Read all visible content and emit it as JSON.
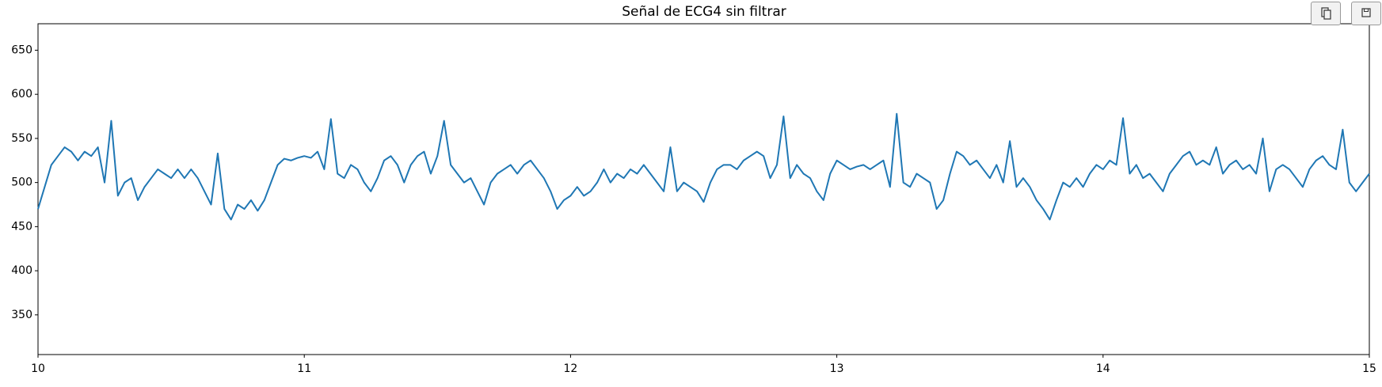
{
  "chart_data": {
    "type": "line",
    "title": "Señal de ECG4 sin filtrar",
    "x": [
      10.0,
      10.025,
      10.05,
      10.075,
      10.1,
      10.125,
      10.15,
      10.175,
      10.2,
      10.225,
      10.25,
      10.275,
      10.3,
      10.325,
      10.35,
      10.375,
      10.4,
      10.425,
      10.45,
      10.475,
      10.5,
      10.525,
      10.55,
      10.575,
      10.6,
      10.625,
      10.65,
      10.675,
      10.7,
      10.725,
      10.75,
      10.775,
      10.8,
      10.825,
      10.85,
      10.875,
      10.9,
      10.925,
      10.95,
      10.975,
      11.0,
      11.025,
      11.05,
      11.075,
      11.1,
      11.125,
      11.15,
      11.175,
      11.2,
      11.225,
      11.25,
      11.275,
      11.3,
      11.325,
      11.35,
      11.375,
      11.4,
      11.425,
      11.45,
      11.475,
      11.5,
      11.525,
      11.55,
      11.575,
      11.6,
      11.625,
      11.65,
      11.675,
      11.7,
      11.725,
      11.75,
      11.775,
      11.8,
      11.825,
      11.85,
      11.875,
      11.9,
      11.925,
      11.95,
      11.975,
      12.0,
      12.025,
      12.05,
      12.075,
      12.1,
      12.125,
      12.15,
      12.175,
      12.2,
      12.225,
      12.25,
      12.275,
      12.3,
      12.325,
      12.35,
      12.375,
      12.4,
      12.425,
      12.45,
      12.475,
      12.5,
      12.525,
      12.55,
      12.575,
      12.6,
      12.625,
      12.65,
      12.675,
      12.7,
      12.725,
      12.75,
      12.775,
      12.8,
      12.825,
      12.85,
      12.875,
      12.9,
      12.925,
      12.95,
      12.975,
      13.0,
      13.025,
      13.05,
      13.075,
      13.1,
      13.125,
      13.15,
      13.175,
      13.2,
      13.225,
      13.25,
      13.275,
      13.3,
      13.325,
      13.35,
      13.375,
      13.4,
      13.425,
      13.45,
      13.475,
      13.5,
      13.525,
      13.55,
      13.575,
      13.6,
      13.625,
      13.65,
      13.675,
      13.7,
      13.725,
      13.75,
      13.775,
      13.8,
      13.825,
      13.85,
      13.875,
      13.9,
      13.925,
      13.95,
      13.975,
      14.0,
      14.025,
      14.05,
      14.075,
      14.1,
      14.125,
      14.15,
      14.175,
      14.2,
      14.225,
      14.25,
      14.275,
      14.3,
      14.325,
      14.35,
      14.375,
      14.4,
      14.425,
      14.45,
      14.475,
      14.5,
      14.525,
      14.55,
      14.575,
      14.6,
      14.625,
      14.65,
      14.675,
      14.7,
      14.725,
      14.75,
      14.775,
      14.8,
      14.825,
      14.85,
      14.875,
      14.9,
      14.925,
      14.95,
      14.975,
      15.0
    ],
    "values": [
      470,
      495,
      520,
      530,
      540,
      535,
      525,
      535,
      530,
      540,
      500,
      570,
      485,
      500,
      505,
      480,
      495,
      505,
      515,
      510,
      505,
      515,
      505,
      515,
      505,
      490,
      475,
      533,
      470,
      458,
      475,
      470,
      480,
      468,
      480,
      500,
      520,
      527,
      525,
      528,
      530,
      528,
      535,
      515,
      572,
      510,
      505,
      520,
      515,
      500,
      490,
      505,
      525,
      530,
      520,
      500,
      520,
      530,
      535,
      510,
      530,
      570,
      520,
      510,
      500,
      505,
      490,
      475,
      500,
      510,
      515,
      520,
      510,
      520,
      525,
      515,
      505,
      490,
      470,
      480,
      485,
      495,
      485,
      490,
      500,
      515,
      500,
      510,
      505,
      515,
      510,
      520,
      510,
      500,
      490,
      540,
      490,
      500,
      495,
      490,
      478,
      500,
      515,
      520,
      520,
      515,
      525,
      530,
      535,
      530,
      505,
      520,
      575,
      505,
      520,
      510,
      505,
      490,
      480,
      510,
      525,
      520,
      515,
      518,
      520,
      515,
      520,
      525,
      495,
      578,
      500,
      495,
      510,
      505,
      500,
      470,
      480,
      510,
      535,
      530,
      520,
      525,
      515,
      505,
      520,
      500,
      547,
      495,
      505,
      495,
      480,
      470,
      458,
      480,
      500,
      495,
      505,
      495,
      510,
      520,
      515,
      525,
      520,
      573,
      510,
      520,
      505,
      510,
      500,
      490,
      510,
      520,
      530,
      535,
      520,
      525,
      520,
      540,
      510,
      520,
      525,
      515,
      520,
      510,
      550,
      490,
      515,
      520,
      515,
      505,
      495,
      515,
      525,
      530,
      520,
      515,
      560,
      500,
      490,
      500,
      510
    ],
    "color": "#1f77b4",
    "xlim": [
      10,
      15
    ],
    "xticks": [
      10,
      11,
      12,
      13,
      14,
      15
    ],
    "ylim": [
      305,
      680
    ],
    "yticks": [
      350,
      400,
      450,
      500,
      550,
      600,
      650
    ],
    "grid": false
  }
}
